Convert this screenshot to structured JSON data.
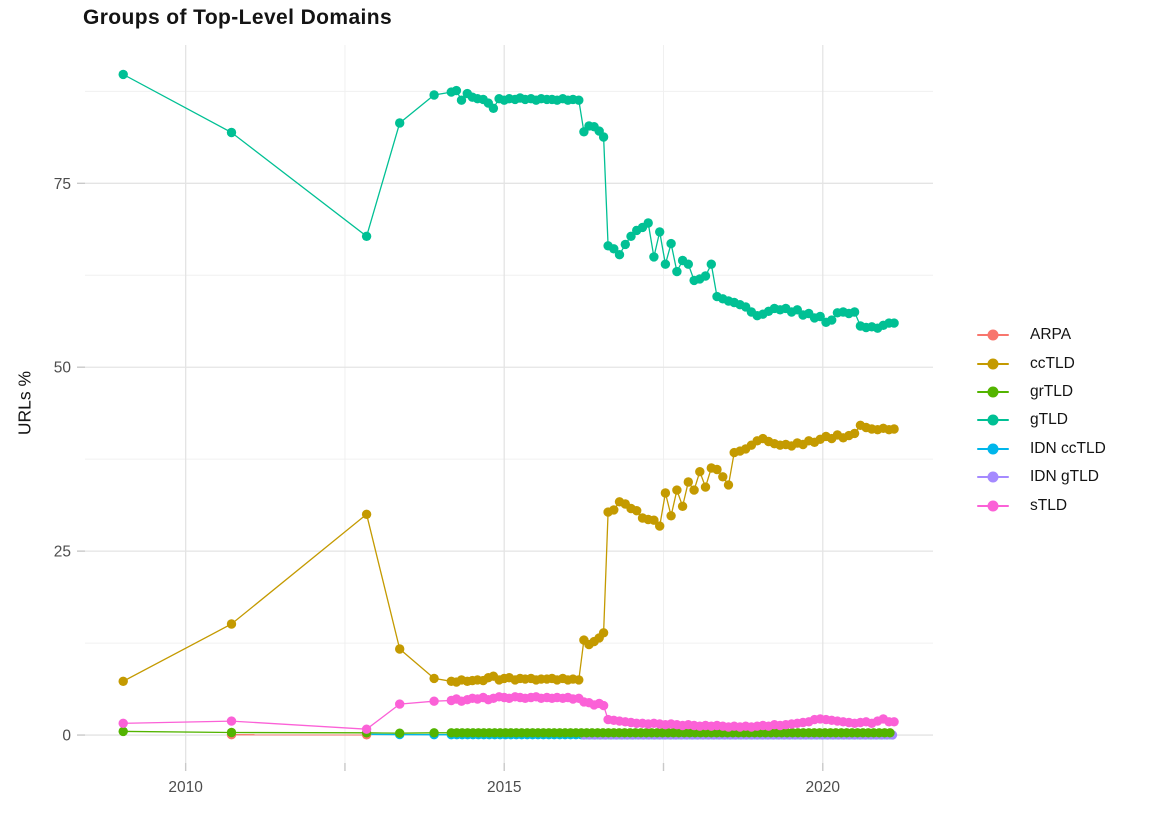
{
  "chart_data": {
    "type": "line",
    "title": "Groups of Top-Level Domains",
    "xlabel": "",
    "ylabel": "URLs %",
    "xlim": [
      2008.42,
      2021.73
    ],
    "ylim": [
      -3.8,
      93.8
    ],
    "grid": true,
    "legend_position": "right",
    "x_major_ticks": [
      2010,
      2015,
      2020
    ],
    "x_major_tick_labels": [
      "2010",
      "2015",
      "2020"
    ],
    "x_minor_ticks": [
      2012.5,
      2017.5
    ],
    "y_major_ticks": [
      0,
      25,
      50,
      75
    ],
    "y_major_tick_labels": [
      "0",
      "25",
      "50",
      "75"
    ],
    "y_minor_ticks": [
      12.5,
      37.5,
      62.5,
      87.5
    ],
    "axis_text_color": "#4d4d4d",
    "grid_major_color": "#e4e4e4",
    "grid_minor_color": "#f0f0f0",
    "tick_mark_color": "#c9c9c9",
    "point_draw_order": [
      "IDN ccTLD",
      "IDN gTLD",
      "ARPA",
      "grTLD",
      "gTLD",
      "ccTLD",
      "sTLD"
    ],
    "series": [
      {
        "name": "ARPA",
        "color": "#F8766D",
        "points": [
          [
            2010.72,
            0.05
          ],
          [
            2012.84,
            0.04
          ]
        ]
      },
      {
        "name": "ccTLD",
        "color": "#C49A00",
        "points": [
          [
            2009.02,
            7.3
          ],
          [
            2010.72,
            15.1
          ],
          [
            2012.84,
            30.0
          ],
          [
            2013.36,
            11.7
          ],
          [
            2013.9,
            7.7
          ],
          [
            2014.17,
            7.3
          ],
          [
            2014.25,
            7.2
          ],
          [
            2014.33,
            7.5
          ],
          [
            2014.42,
            7.3
          ],
          [
            2014.5,
            7.4
          ],
          [
            2014.58,
            7.5
          ],
          [
            2014.67,
            7.4
          ],
          [
            2014.75,
            7.8
          ],
          [
            2014.83,
            8.0
          ],
          [
            2014.92,
            7.5
          ],
          [
            2015.0,
            7.7
          ],
          [
            2015.08,
            7.8
          ],
          [
            2015.17,
            7.5
          ],
          [
            2015.25,
            7.7
          ],
          [
            2015.33,
            7.6
          ],
          [
            2015.42,
            7.7
          ],
          [
            2015.5,
            7.5
          ],
          [
            2015.58,
            7.6
          ],
          [
            2015.67,
            7.6
          ],
          [
            2015.75,
            7.7
          ],
          [
            2015.83,
            7.5
          ],
          [
            2015.92,
            7.7
          ],
          [
            2016.0,
            7.5
          ],
          [
            2016.08,
            7.6
          ],
          [
            2016.17,
            7.5
          ],
          [
            2016.25,
            12.9
          ],
          [
            2016.33,
            12.3
          ],
          [
            2016.41,
            12.7
          ],
          [
            2016.49,
            13.2
          ],
          [
            2016.56,
            13.9
          ],
          [
            2016.63,
            30.3
          ],
          [
            2016.72,
            30.6
          ],
          [
            2016.81,
            31.7
          ],
          [
            2016.9,
            31.4
          ],
          [
            2016.99,
            30.8
          ],
          [
            2017.08,
            30.5
          ],
          [
            2017.17,
            29.5
          ],
          [
            2017.26,
            29.3
          ],
          [
            2017.35,
            29.2
          ],
          [
            2017.44,
            28.4
          ],
          [
            2017.53,
            32.9
          ],
          [
            2017.62,
            29.8
          ],
          [
            2017.71,
            33.3
          ],
          [
            2017.8,
            31.1
          ],
          [
            2017.89,
            34.4
          ],
          [
            2017.98,
            33.3
          ],
          [
            2018.07,
            35.8
          ],
          [
            2018.16,
            33.7
          ],
          [
            2018.25,
            36.3
          ],
          [
            2018.34,
            36.1
          ],
          [
            2018.43,
            35.1
          ],
          [
            2018.52,
            34.0
          ],
          [
            2018.61,
            38.4
          ],
          [
            2018.7,
            38.6
          ],
          [
            2018.79,
            38.9
          ],
          [
            2018.88,
            39.4
          ],
          [
            2018.97,
            40.0
          ],
          [
            2019.06,
            40.3
          ],
          [
            2019.15,
            39.9
          ],
          [
            2019.24,
            39.6
          ],
          [
            2019.33,
            39.4
          ],
          [
            2019.42,
            39.5
          ],
          [
            2019.51,
            39.3
          ],
          [
            2019.6,
            39.7
          ],
          [
            2019.69,
            39.5
          ],
          [
            2019.78,
            40.0
          ],
          [
            2019.87,
            39.8
          ],
          [
            2019.96,
            40.2
          ],
          [
            2020.05,
            40.6
          ],
          [
            2020.14,
            40.3
          ],
          [
            2020.23,
            40.8
          ],
          [
            2020.32,
            40.4
          ],
          [
            2020.41,
            40.7
          ],
          [
            2020.5,
            41.0
          ],
          [
            2020.59,
            42.1
          ],
          [
            2020.68,
            41.8
          ],
          [
            2020.77,
            41.6
          ],
          [
            2020.86,
            41.5
          ],
          [
            2020.95,
            41.7
          ],
          [
            2021.04,
            41.5
          ],
          [
            2021.12,
            41.6
          ]
        ]
      },
      {
        "name": "grTLD",
        "color": "#53B400",
        "points": [
          [
            2009.02,
            0.5
          ],
          [
            2010.72,
            0.35
          ],
          [
            2012.84,
            0.3
          ],
          [
            2013.36,
            0.25
          ],
          [
            2013.9,
            0.3
          ]
        ],
        "flat": {
          "from": 2014.17,
          "to": 2021.12,
          "step": 0.085,
          "value": 0.3
        }
      },
      {
        "name": "gTLD",
        "color": "#00C094",
        "points": [
          [
            2009.02,
            89.8
          ],
          [
            2010.72,
            81.9
          ],
          [
            2012.84,
            67.8
          ],
          [
            2013.36,
            83.2
          ],
          [
            2013.9,
            87.0
          ],
          [
            2014.17,
            87.4
          ],
          [
            2014.25,
            87.6
          ],
          [
            2014.33,
            86.3
          ],
          [
            2014.42,
            87.2
          ],
          [
            2014.5,
            86.7
          ],
          [
            2014.58,
            86.5
          ],
          [
            2014.67,
            86.4
          ],
          [
            2014.75,
            85.9
          ],
          [
            2014.83,
            85.2
          ],
          [
            2014.92,
            86.5
          ],
          [
            2015.0,
            86.3
          ],
          [
            2015.08,
            86.5
          ],
          [
            2015.17,
            86.4
          ],
          [
            2015.25,
            86.6
          ],
          [
            2015.33,
            86.4
          ],
          [
            2015.42,
            86.5
          ],
          [
            2015.5,
            86.3
          ],
          [
            2015.58,
            86.5
          ],
          [
            2015.67,
            86.4
          ],
          [
            2015.75,
            86.4
          ],
          [
            2015.83,
            86.3
          ],
          [
            2015.92,
            86.5
          ],
          [
            2016.0,
            86.3
          ],
          [
            2016.08,
            86.4
          ],
          [
            2016.17,
            86.3
          ],
          [
            2016.25,
            82.0
          ],
          [
            2016.33,
            82.8
          ],
          [
            2016.41,
            82.7
          ],
          [
            2016.49,
            82.1
          ],
          [
            2016.56,
            81.3
          ],
          [
            2016.63,
            66.5
          ],
          [
            2016.72,
            66.1
          ],
          [
            2016.81,
            65.3
          ],
          [
            2016.9,
            66.7
          ],
          [
            2016.99,
            67.8
          ],
          [
            2017.08,
            68.6
          ],
          [
            2017.17,
            69.0
          ],
          [
            2017.26,
            69.6
          ],
          [
            2017.35,
            65.0
          ],
          [
            2017.44,
            68.4
          ],
          [
            2017.53,
            64.0
          ],
          [
            2017.62,
            66.8
          ],
          [
            2017.71,
            63.0
          ],
          [
            2017.8,
            64.5
          ],
          [
            2017.89,
            64.0
          ],
          [
            2017.98,
            61.8
          ],
          [
            2018.07,
            62.0
          ],
          [
            2018.16,
            62.4
          ],
          [
            2018.25,
            64.0
          ],
          [
            2018.34,
            59.6
          ],
          [
            2018.43,
            59.3
          ],
          [
            2018.52,
            59.0
          ],
          [
            2018.61,
            58.8
          ],
          [
            2018.7,
            58.5
          ],
          [
            2018.79,
            58.2
          ],
          [
            2018.88,
            57.5
          ],
          [
            2018.97,
            57.0
          ],
          [
            2019.06,
            57.2
          ],
          [
            2019.15,
            57.6
          ],
          [
            2019.24,
            58.0
          ],
          [
            2019.33,
            57.8
          ],
          [
            2019.42,
            58.0
          ],
          [
            2019.51,
            57.5
          ],
          [
            2019.6,
            57.8
          ],
          [
            2019.69,
            57.1
          ],
          [
            2019.78,
            57.3
          ],
          [
            2019.87,
            56.7
          ],
          [
            2019.96,
            56.9
          ],
          [
            2020.05,
            56.1
          ],
          [
            2020.14,
            56.4
          ],
          [
            2020.23,
            57.4
          ],
          [
            2020.32,
            57.5
          ],
          [
            2020.41,
            57.3
          ],
          [
            2020.5,
            57.5
          ],
          [
            2020.59,
            55.6
          ],
          [
            2020.68,
            55.4
          ],
          [
            2020.77,
            55.5
          ],
          [
            2020.86,
            55.3
          ],
          [
            2020.95,
            55.7
          ],
          [
            2021.04,
            56.0
          ],
          [
            2021.12,
            56.0
          ]
        ]
      },
      {
        "name": "IDN ccTLD",
        "color": "#00B6EB",
        "points": [
          [
            2012.84,
            0.1
          ],
          [
            2013.36,
            0.06
          ],
          [
            2013.9,
            0.05
          ]
        ],
        "flat": {
          "from": 2014.17,
          "to": 2021.12,
          "step": 0.085,
          "value": 0.05
        }
      },
      {
        "name": "IDN gTLD",
        "color": "#A58AFF",
        "points": [],
        "flat": {
          "from": 2016.25,
          "to": 2021.12,
          "step": 0.085,
          "value": 0.02
        }
      },
      {
        "name": "sTLD",
        "color": "#FB61D7",
        "points": [
          [
            2009.02,
            1.6
          ],
          [
            2010.72,
            1.9
          ],
          [
            2012.84,
            0.8
          ],
          [
            2013.36,
            4.2
          ],
          [
            2013.9,
            4.6
          ],
          [
            2014.17,
            4.7
          ],
          [
            2014.25,
            4.9
          ],
          [
            2014.33,
            4.6
          ],
          [
            2014.42,
            4.8
          ],
          [
            2014.5,
            5.0
          ],
          [
            2014.58,
            4.9
          ],
          [
            2014.67,
            5.1
          ],
          [
            2014.75,
            4.8
          ],
          [
            2014.83,
            5.0
          ],
          [
            2014.92,
            5.2
          ],
          [
            2015.0,
            5.1
          ],
          [
            2015.08,
            5.0
          ],
          [
            2015.17,
            5.2
          ],
          [
            2015.25,
            5.1
          ],
          [
            2015.33,
            5.0
          ],
          [
            2015.42,
            5.1
          ],
          [
            2015.5,
            5.2
          ],
          [
            2015.58,
            5.0
          ],
          [
            2015.67,
            5.1
          ],
          [
            2015.75,
            5.0
          ],
          [
            2015.83,
            5.1
          ],
          [
            2015.92,
            5.0
          ],
          [
            2016.0,
            5.1
          ],
          [
            2016.08,
            4.9
          ],
          [
            2016.17,
            5.0
          ],
          [
            2016.25,
            4.5
          ],
          [
            2016.33,
            4.4
          ],
          [
            2016.41,
            4.1
          ],
          [
            2016.49,
            4.3
          ],
          [
            2016.56,
            4.0
          ],
          [
            2016.63,
            2.1
          ],
          [
            2016.72,
            2.0
          ],
          [
            2016.81,
            1.9
          ],
          [
            2016.9,
            1.8
          ],
          [
            2016.99,
            1.7
          ],
          [
            2017.08,
            1.6
          ],
          [
            2017.17,
            1.6
          ],
          [
            2017.26,
            1.5
          ],
          [
            2017.35,
            1.6
          ],
          [
            2017.44,
            1.5
          ],
          [
            2017.53,
            1.4
          ],
          [
            2017.62,
            1.5
          ],
          [
            2017.71,
            1.4
          ],
          [
            2017.8,
            1.3
          ],
          [
            2017.89,
            1.4
          ],
          [
            2017.98,
            1.3
          ],
          [
            2018.07,
            1.2
          ],
          [
            2018.16,
            1.3
          ],
          [
            2018.25,
            1.2
          ],
          [
            2018.34,
            1.3
          ],
          [
            2018.43,
            1.2
          ],
          [
            2018.52,
            1.1
          ],
          [
            2018.61,
            1.2
          ],
          [
            2018.7,
            1.1
          ],
          [
            2018.79,
            1.2
          ],
          [
            2018.88,
            1.1
          ],
          [
            2018.97,
            1.2
          ],
          [
            2019.06,
            1.3
          ],
          [
            2019.15,
            1.2
          ],
          [
            2019.24,
            1.4
          ],
          [
            2019.33,
            1.3
          ],
          [
            2019.42,
            1.4
          ],
          [
            2019.51,
            1.5
          ],
          [
            2019.6,
            1.6
          ],
          [
            2019.69,
            1.7
          ],
          [
            2019.78,
            1.8
          ],
          [
            2019.87,
            2.1
          ],
          [
            2019.96,
            2.2
          ],
          [
            2020.05,
            2.1
          ],
          [
            2020.14,
            2.0
          ],
          [
            2020.23,
            1.9
          ],
          [
            2020.32,
            1.8
          ],
          [
            2020.41,
            1.7
          ],
          [
            2020.5,
            1.6
          ],
          [
            2020.59,
            1.7
          ],
          [
            2020.68,
            1.8
          ],
          [
            2020.77,
            1.6
          ],
          [
            2020.86,
            1.9
          ],
          [
            2020.95,
            2.2
          ],
          [
            2021.04,
            1.8
          ],
          [
            2021.12,
            1.8
          ]
        ]
      }
    ]
  }
}
